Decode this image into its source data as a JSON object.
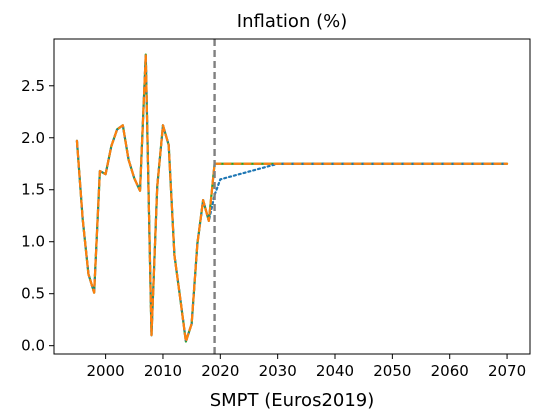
{
  "chart_data": {
    "type": "line",
    "title": "Inflation (%)",
    "xlabel": "SMPT (Euros2019)",
    "ylabel": "",
    "xlim": [
      1991,
      2074
    ],
    "ylim": [
      -0.08,
      2.95
    ],
    "x_ticks": [
      2000,
      2010,
      2020,
      2030,
      2040,
      2050,
      2060,
      2070
    ],
    "y_ticks": [
      0.0,
      0.5,
      1.0,
      1.5,
      2.0,
      2.5
    ],
    "x_tick_labels": [
      "2000",
      "2010",
      "2020",
      "2030",
      "2040",
      "2050",
      "2060",
      "2070"
    ],
    "y_tick_labels": [
      "0.0",
      "0.5",
      "1.0",
      "1.5",
      "2.0",
      "2.5"
    ],
    "grid": false,
    "vline": {
      "x": 2019,
      "style": "dashed",
      "color": "#808080"
    },
    "series": [
      {
        "color": "#2ca02c",
        "style": "solid",
        "x": [
          1995,
          1996,
          1997,
          1998,
          1999,
          2000,
          2001,
          2002,
          2003,
          2004,
          2005,
          2006,
          2007,
          2008,
          2009,
          2010,
          2011,
          2012,
          2013,
          2014,
          2015,
          2016,
          2017,
          2018,
          2019,
          2020,
          2030,
          2040,
          2050,
          2060,
          2070
        ],
        "values": [
          1.97,
          1.22,
          0.69,
          0.51,
          1.68,
          1.65,
          1.92,
          2.08,
          2.12,
          1.79,
          1.61,
          1.49,
          2.8,
          0.1,
          1.53,
          2.12,
          1.93,
          0.87,
          0.46,
          0.04,
          0.21,
          0.98,
          1.4,
          1.2,
          1.75,
          1.75,
          1.75,
          1.75,
          1.75,
          1.75,
          1.75
        ]
      },
      {
        "color": "#1f77b4",
        "style": "dotted",
        "x": [
          1995,
          1996,
          1997,
          1998,
          1999,
          2000,
          2001,
          2002,
          2003,
          2004,
          2005,
          2006,
          2007,
          2008,
          2009,
          2010,
          2011,
          2012,
          2013,
          2014,
          2015,
          2016,
          2017,
          2018,
          2019,
          2020,
          2030,
          2040,
          2050,
          2060,
          2070
        ],
        "values": [
          1.97,
          1.22,
          0.69,
          0.51,
          1.68,
          1.65,
          1.92,
          2.08,
          2.12,
          1.79,
          1.61,
          1.49,
          2.8,
          0.1,
          1.53,
          2.12,
          1.93,
          0.87,
          0.46,
          0.04,
          0.21,
          0.98,
          1.4,
          1.2,
          1.45,
          1.6,
          1.75,
          1.75,
          1.75,
          1.75,
          1.75
        ]
      },
      {
        "color": "#ff7f0e",
        "style": "dashed",
        "x": [
          1995,
          1996,
          1997,
          1998,
          1999,
          2000,
          2001,
          2002,
          2003,
          2004,
          2005,
          2006,
          2007,
          2008,
          2009,
          2010,
          2011,
          2012,
          2013,
          2014,
          2015,
          2016,
          2017,
          2018,
          2019,
          2020,
          2030,
          2040,
          2050,
          2060,
          2070
        ],
        "values": [
          1.97,
          1.22,
          0.69,
          0.51,
          1.68,
          1.65,
          1.92,
          2.08,
          2.12,
          1.79,
          1.61,
          1.49,
          2.8,
          0.1,
          1.53,
          2.12,
          1.93,
          0.87,
          0.46,
          0.04,
          0.21,
          0.98,
          1.4,
          1.2,
          1.75,
          1.75,
          1.75,
          1.75,
          1.75,
          1.75,
          1.75
        ]
      }
    ]
  }
}
